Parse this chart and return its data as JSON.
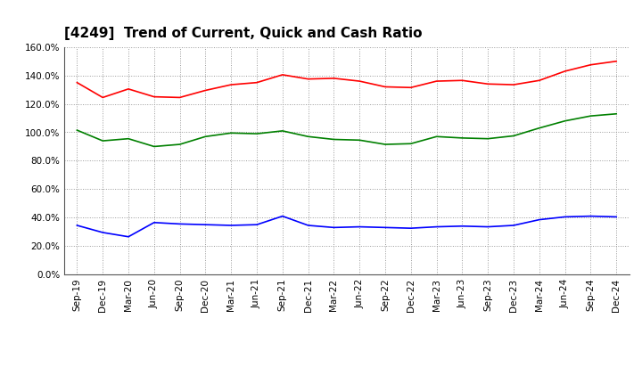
{
  "title": "[4249]  Trend of Current, Quick and Cash Ratio",
  "x_labels": [
    "Sep-19",
    "Dec-19",
    "Mar-20",
    "Jun-20",
    "Sep-20",
    "Dec-20",
    "Mar-21",
    "Jun-21",
    "Sep-21",
    "Dec-21",
    "Mar-22",
    "Jun-22",
    "Sep-22",
    "Dec-22",
    "Mar-23",
    "Jun-23",
    "Sep-23",
    "Dec-23",
    "Mar-24",
    "Jun-24",
    "Sep-24",
    "Dec-24"
  ],
  "current_ratio": [
    135.0,
    124.5,
    130.5,
    125.0,
    124.5,
    129.5,
    133.5,
    135.0,
    140.5,
    137.5,
    138.0,
    136.0,
    132.0,
    131.5,
    136.0,
    136.5,
    134.0,
    133.5,
    136.5,
    143.0,
    147.5,
    150.0
  ],
  "quick_ratio": [
    101.5,
    94.0,
    95.5,
    90.0,
    91.5,
    97.0,
    99.5,
    99.0,
    101.0,
    97.0,
    95.0,
    94.5,
    91.5,
    92.0,
    97.0,
    96.0,
    95.5,
    97.5,
    103.0,
    108.0,
    111.5,
    113.0
  ],
  "cash_ratio": [
    34.5,
    29.5,
    26.5,
    36.5,
    35.5,
    35.0,
    34.5,
    35.0,
    41.0,
    34.5,
    33.0,
    33.5,
    33.0,
    32.5,
    33.5,
    34.0,
    33.5,
    34.5,
    38.5,
    40.5,
    41.0,
    40.5
  ],
  "current_color": "#ff0000",
  "quick_color": "#008000",
  "cash_color": "#0000ff",
  "background_color": "#ffffff",
  "grid_color": "#999999",
  "ylim": [
    0,
    160
  ],
  "ytick_step": 20,
  "title_fontsize": 11,
  "legend_fontsize": 9,
  "tick_fontsize": 7.5
}
